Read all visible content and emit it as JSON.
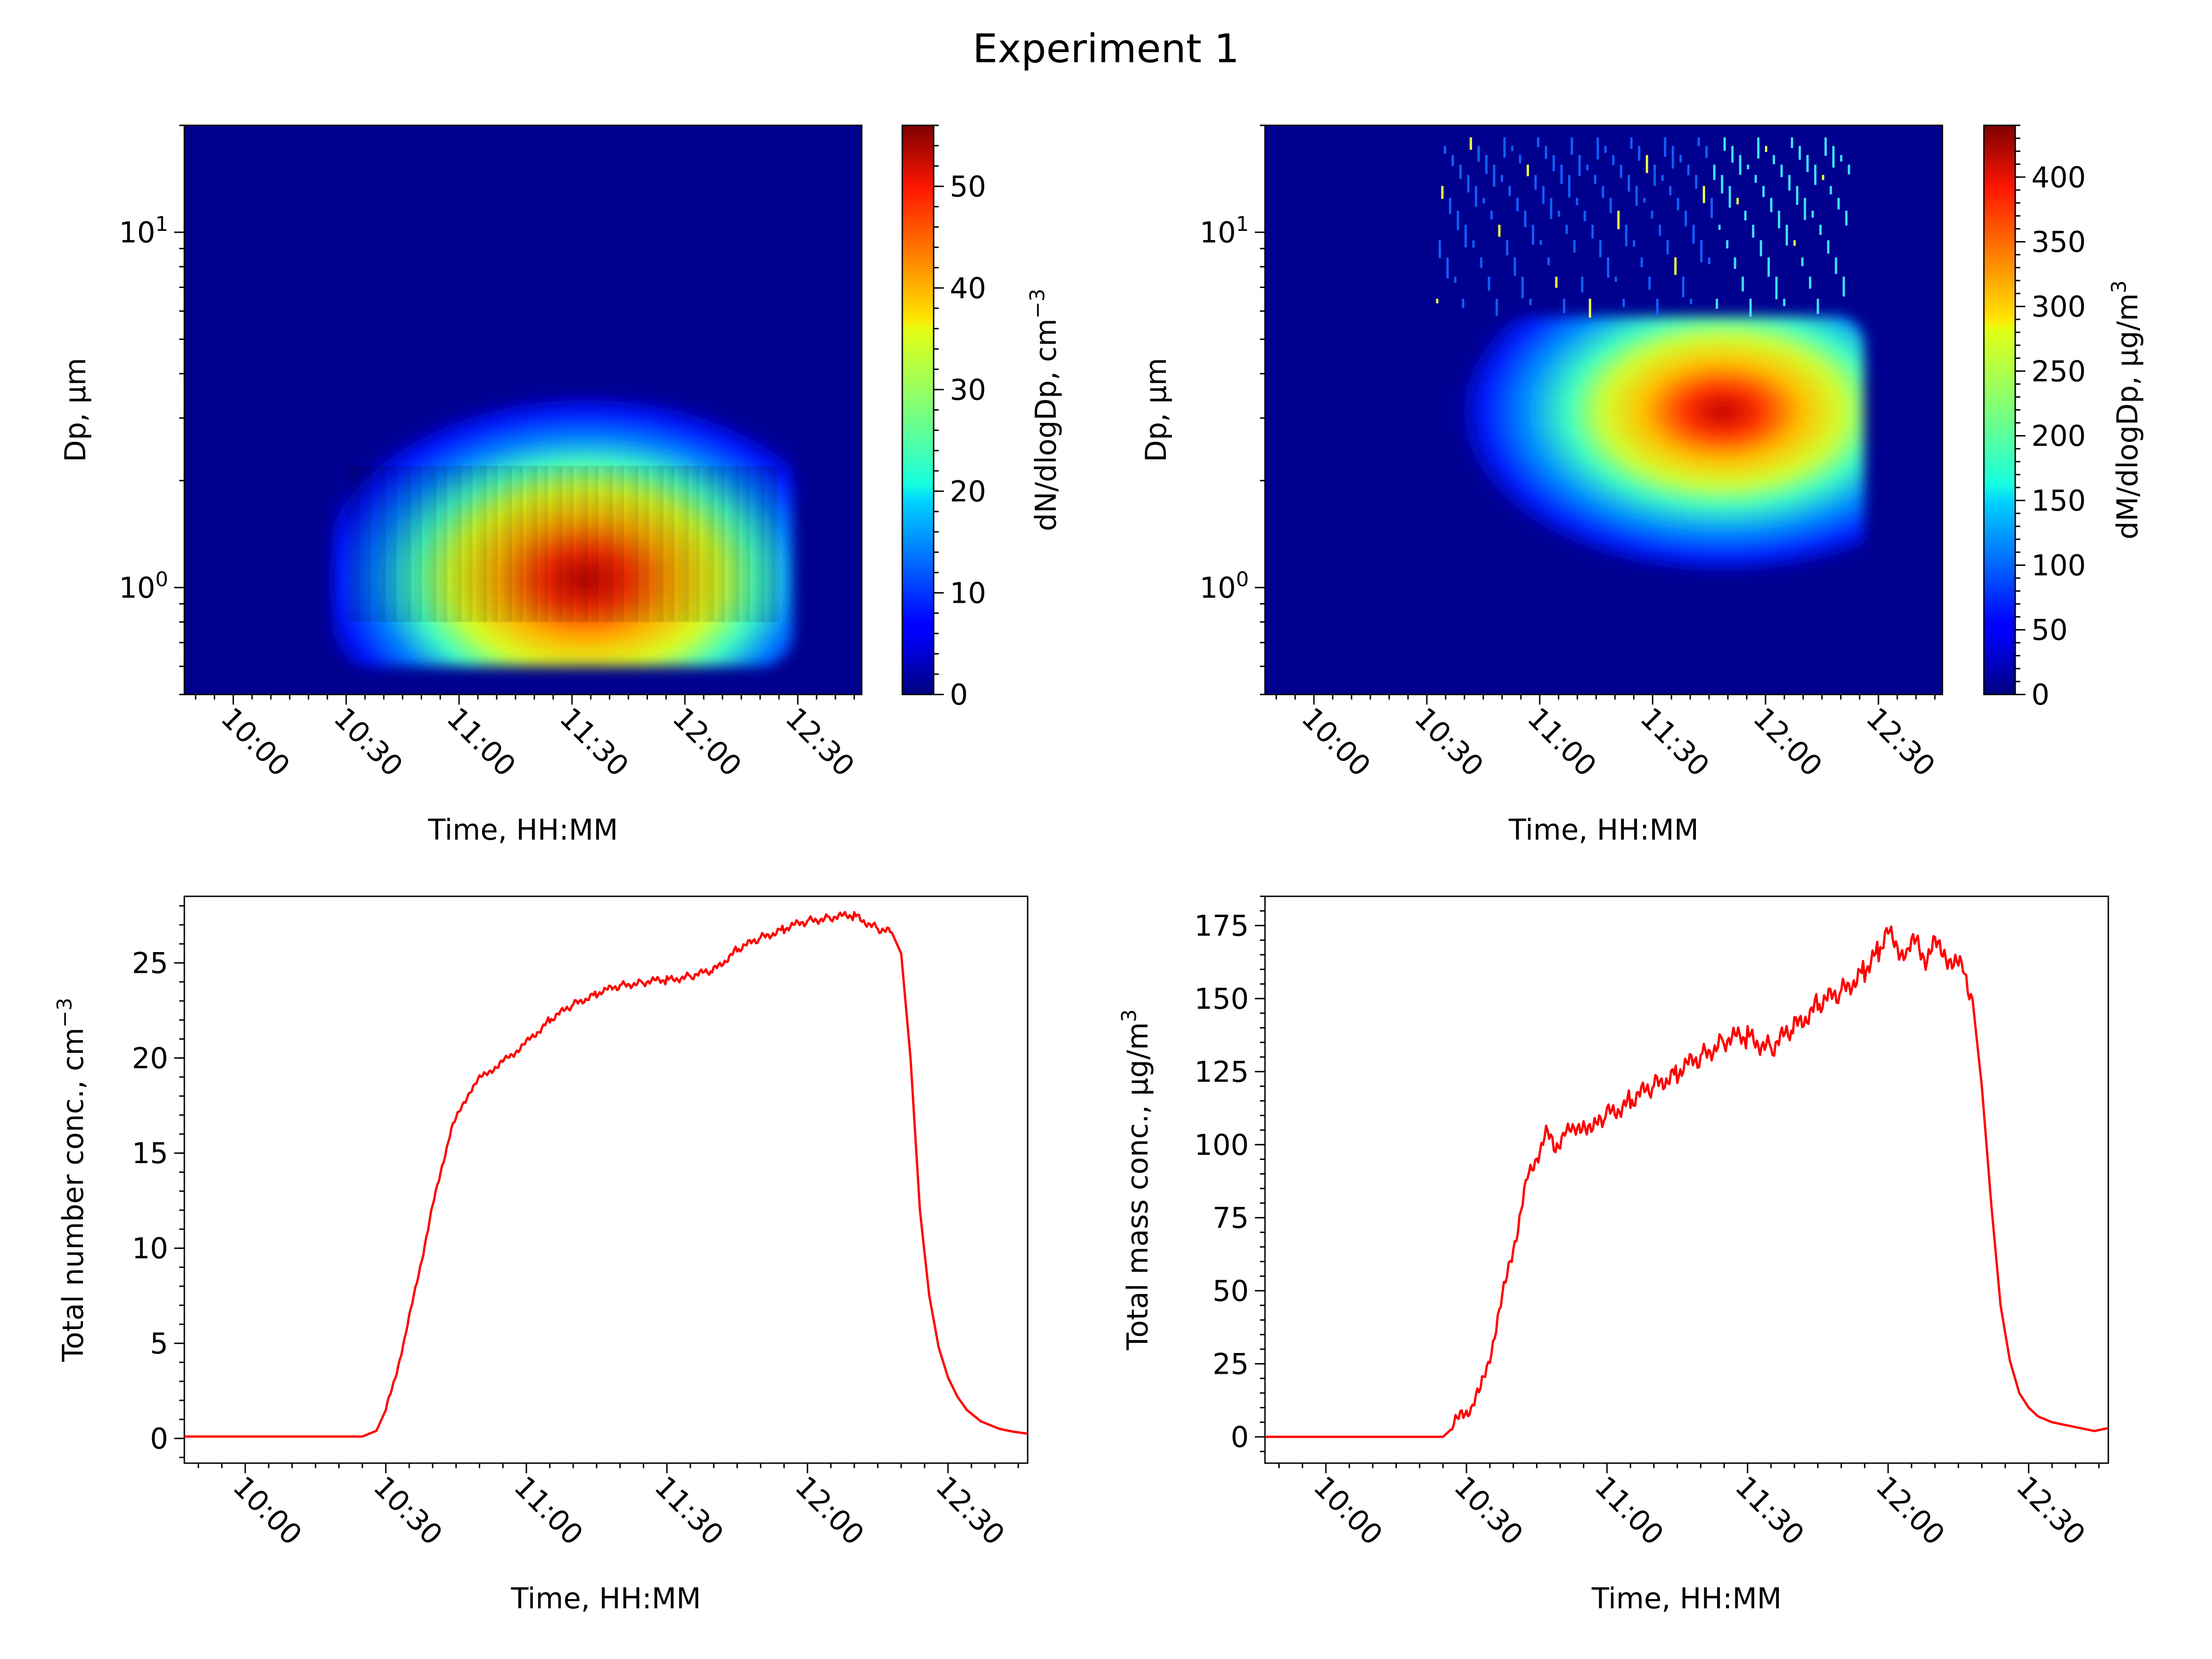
{
  "figure": {
    "title": "Experiment 1"
  },
  "chart_data": [
    {
      "type": "heatmap",
      "xlabel": "Time, HH:MM",
      "ylabel": "Dp, μm",
      "xlim": [
        "09:47",
        "12:47"
      ],
      "x_ticks": [
        "10:00",
        "10:30",
        "11:00",
        "11:30",
        "12:00",
        "12:30"
      ],
      "yscale": "log",
      "ylim": [
        0.5,
        20
      ],
      "y_ticks": [
        {
          "base": "10",
          "exp": "0"
        },
        {
          "base": "10",
          "exp": "1"
        }
      ],
      "colormap": "jet",
      "colorbar": {
        "label": "dN/dlogDp, cm",
        "label_exp": "−3",
        "min": 0,
        "max": 56,
        "ticks": [
          "0",
          "10",
          "20",
          "30",
          "40",
          "50"
        ]
      },
      "description_points": {
        "start_time": "10:30",
        "end_time": "12:25",
        "peak_dp": 1.0,
        "peak_value": 56
      }
    },
    {
      "type": "heatmap",
      "xlabel": "Time, HH:MM",
      "ylabel": "Dp, μm",
      "xlim": [
        "09:47",
        "12:47"
      ],
      "x_ticks": [
        "10:00",
        "10:30",
        "11:00",
        "11:30",
        "12:00",
        "12:30"
      ],
      "yscale": "log",
      "ylim": [
        0.5,
        20
      ],
      "y_ticks": [
        {
          "base": "10",
          "exp": "0"
        },
        {
          "base": "10",
          "exp": "1"
        }
      ],
      "colormap": "jet",
      "colorbar": {
        "label": "dM/dlogDp, μg/m",
        "label_exp": "3",
        "min": 0,
        "max": 440,
        "ticks": [
          "0",
          "50",
          "100",
          "150",
          "200",
          "250",
          "300",
          "350",
          "400"
        ]
      },
      "description_points": {
        "start_time": "10:30",
        "end_time": "12:25",
        "peak_dp": 3.8,
        "peak_value": 440
      }
    },
    {
      "type": "line",
      "xlabel": "Time, HH:MM",
      "ylabel": "Total number conc., cm",
      "ylabel_exp": "−3",
      "xlim": [
        "09:47",
        "12:47"
      ],
      "x_ticks": [
        "10:00",
        "10:30",
        "11:00",
        "11:30",
        "12:00",
        "12:30"
      ],
      "ylim": [
        -1.3,
        28.5
      ],
      "y_ticks": [
        "0",
        "5",
        "10",
        "15",
        "20",
        "25"
      ],
      "color": "#ff0000",
      "series": [
        {
          "x": [
            "09:47",
            "10:25",
            "10:28",
            "10:30",
            "10:32",
            "10:34",
            "10:36",
            "10:38",
            "10:40",
            "10:42",
            "10:44",
            "10:46",
            "10:48",
            "10:50",
            "10:52",
            "10:54",
            "10:56",
            "10:58",
            "11:00",
            "11:05",
            "11:10",
            "11:15",
            "11:20",
            "11:25",
            "11:30",
            "11:35",
            "11:40",
            "11:45",
            "11:50",
            "11:55",
            "12:00",
            "12:05",
            "12:10",
            "12:15",
            "12:18",
            "12:20",
            "12:22",
            "12:24",
            "12:26",
            "12:28",
            "12:30",
            "12:32",
            "12:34",
            "12:37",
            "12:41",
            "12:44",
            "12:47"
          ],
          "y": [
            0.1,
            0.1,
            0.4,
            1.5,
            3.2,
            5.2,
            7.5,
            9.8,
            12.2,
            14.3,
            16.3,
            17.3,
            18.3,
            18.9,
            19.3,
            19.6,
            20.0,
            20.4,
            20.8,
            22.0,
            22.8,
            23.4,
            23.8,
            24.0,
            24.1,
            24.3,
            24.6,
            25.7,
            26.3,
            26.8,
            27.2,
            27.4,
            27.5,
            26.8,
            26.6,
            25.5,
            20.0,
            12.0,
            7.5,
            4.8,
            3.2,
            2.2,
            1.5,
            0.9,
            0.5,
            0.35,
            0.25
          ]
        }
      ]
    },
    {
      "type": "line",
      "xlabel": "Time, HH:MM",
      "ylabel": "Total mass conc., μg/m",
      "ylabel_exp": "3",
      "xlim": [
        "09:47",
        "12:47"
      ],
      "x_ticks": [
        "10:00",
        "10:30",
        "11:00",
        "11:30",
        "12:00",
        "12:30"
      ],
      "ylim": [
        -9,
        185
      ],
      "y_ticks": [
        "0",
        "25",
        "50",
        "75",
        "100",
        "125",
        "150",
        "175"
      ],
      "color": "#ff0000",
      "series": [
        {
          "x": [
            "09:47",
            "10:25",
            "10:27",
            "10:29",
            "10:31",
            "10:33",
            "10:35",
            "10:37",
            "10:39",
            "10:41",
            "10:43",
            "10:45",
            "10:47",
            "10:49",
            "10:51",
            "10:53",
            "10:55",
            "10:57",
            "11:00",
            "11:05",
            "11:10",
            "11:15",
            "11:20",
            "11:25",
            "11:30",
            "11:35",
            "11:40",
            "11:45",
            "11:50",
            "11:55",
            "11:58",
            "12:00",
            "12:02",
            "12:04",
            "12:06",
            "12:08",
            "12:10",
            "12:12",
            "12:14",
            "12:16",
            "12:18",
            "12:20",
            "12:22",
            "12:24",
            "12:26",
            "12:28",
            "12:30",
            "12:32",
            "12:35",
            "12:38",
            "12:41",
            "12:44",
            "12:47"
          ],
          "y": [
            0,
            0,
            3,
            8,
            10,
            16,
            28,
            42,
            58,
            72,
            88,
            96,
            104,
            98,
            106,
            103,
            108,
            105,
            110,
            115,
            120,
            125,
            130,
            136,
            137,
            133,
            140,
            148,
            152,
            160,
            166,
            172,
            168,
            165,
            170,
            164,
            168,
            166,
            162,
            160,
            150,
            120,
            80,
            45,
            26,
            15,
            10,
            7,
            5,
            4,
            3,
            2,
            3
          ]
        }
      ]
    }
  ]
}
